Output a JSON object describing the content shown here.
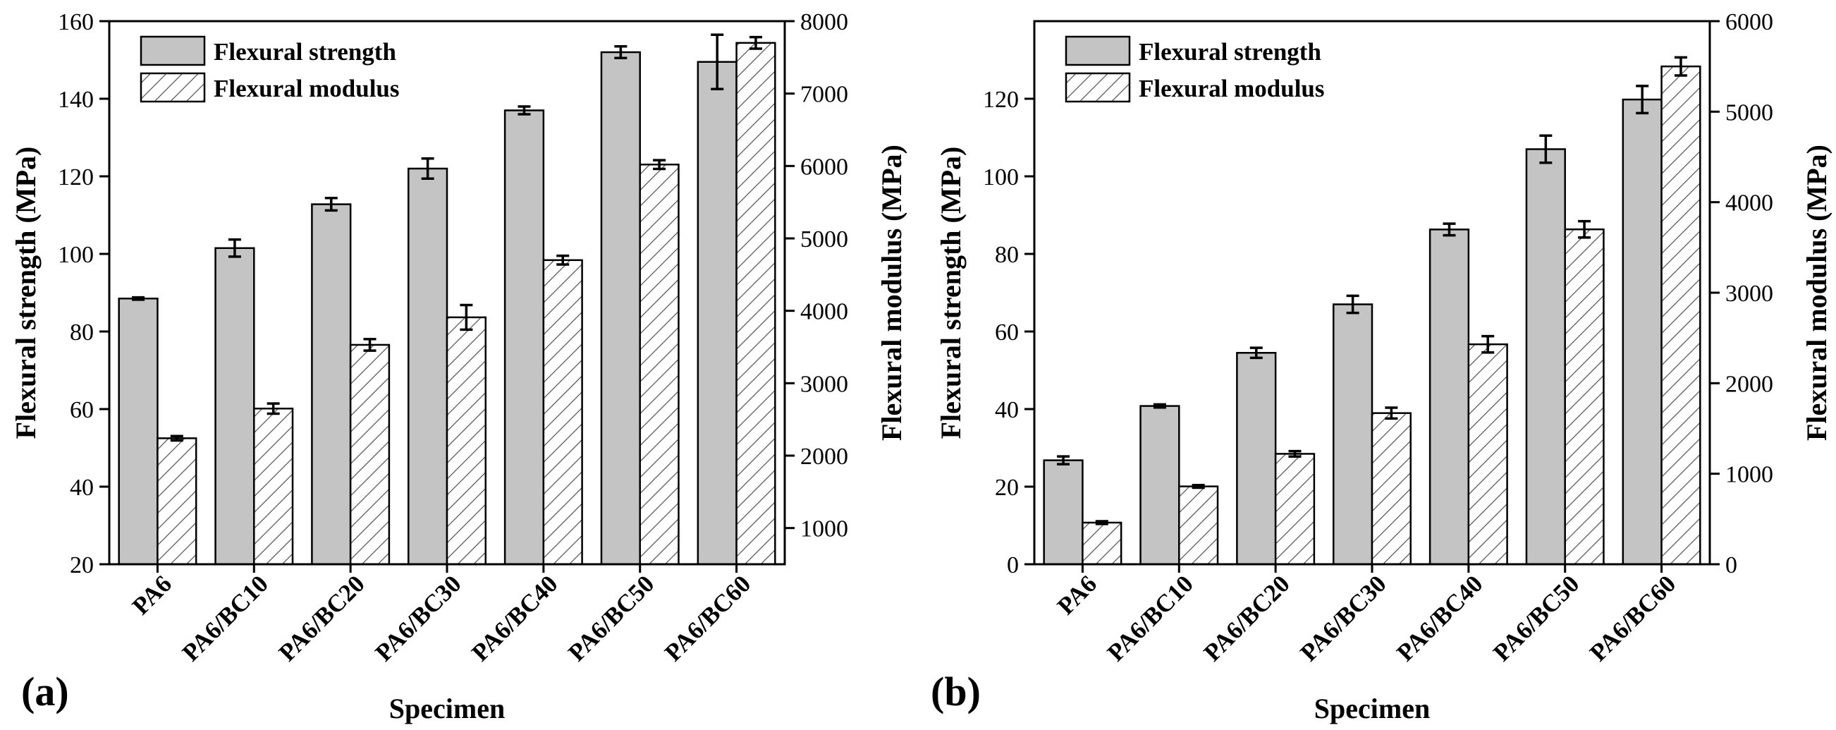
{
  "colors": {
    "strength_fill": "#c4c4c4",
    "modulus_fill": "#ffffff",
    "hatch": "#555555",
    "axis": "#000000"
  },
  "chart_data": [
    {
      "type": "bar",
      "panel_label": "(a)",
      "categories": [
        "PA6",
        "PA6/BC10",
        "PA6/BC20",
        "PA6/BC30",
        "PA6/BC40",
        "PA6/BC50",
        "PA6/BC60"
      ],
      "xlabel": "Specimen",
      "ylabel": "Flexural strength (MPa)",
      "ylabel_right": "Flexural modulus (MPa)",
      "ylim": [
        20,
        160
      ],
      "yticks": [
        20,
        40,
        60,
        80,
        100,
        120,
        140,
        160
      ],
      "ylim_right": [
        500,
        8000
      ],
      "yticks_right": [
        1000,
        2000,
        3000,
        4000,
        5000,
        6000,
        7000,
        8000
      ],
      "legend": {
        "position": "top-left",
        "entries": [
          "Flexural strength",
          "Flexural modulus"
        ]
      },
      "series": [
        {
          "name": "Flexural strength",
          "axis": "left",
          "values": [
            88.5,
            101.5,
            112.8,
            122,
            137,
            152,
            149.5
          ],
          "errors": [
            0.3,
            2.2,
            1.6,
            2.6,
            1.0,
            1.5,
            7.0
          ]
        },
        {
          "name": "Flexural modulus",
          "axis": "right",
          "values": [
            2240,
            2650,
            3530,
            3910,
            4700,
            6020,
            7700
          ],
          "errors": [
            30,
            70,
            80,
            170,
            60,
            60,
            80
          ]
        }
      ]
    },
    {
      "type": "bar",
      "panel_label": "(b)",
      "categories": [
        "PA6",
        "PA6/BC10",
        "PA6/BC20",
        "PA6/BC30",
        "PA6/BC40",
        "PA6/BC50",
        "PA6/BC60"
      ],
      "xlabel": "Specimen",
      "ylabel": "Flexural strength (MPa)",
      "ylabel_right": "Flexural modulus (MPa)",
      "ylim": [
        0,
        140
      ],
      "yticks": [
        0,
        20,
        40,
        60,
        80,
        100,
        120
      ],
      "ylim_right": [
        0,
        6000
      ],
      "yticks_right": [
        0,
        1000,
        2000,
        3000,
        4000,
        5000,
        6000
      ],
      "legend": {
        "position": "top-left",
        "entries": [
          "Flexural strength",
          "Flexural modulus"
        ]
      },
      "series": [
        {
          "name": "Flexural strength",
          "axis": "left",
          "values": [
            26.8,
            40.8,
            54.5,
            67,
            86.3,
            107,
            119.8
          ],
          "errors": [
            1.0,
            0.4,
            1.3,
            2.2,
            1.5,
            3.5,
            3.5
          ]
        },
        {
          "name": "Flexural modulus",
          "axis": "right",
          "values": [
            460,
            860,
            1220,
            1670,
            2430,
            3700,
            5500
          ],
          "errors": [
            15,
            15,
            30,
            60,
            90,
            90,
            100
          ]
        }
      ]
    }
  ]
}
